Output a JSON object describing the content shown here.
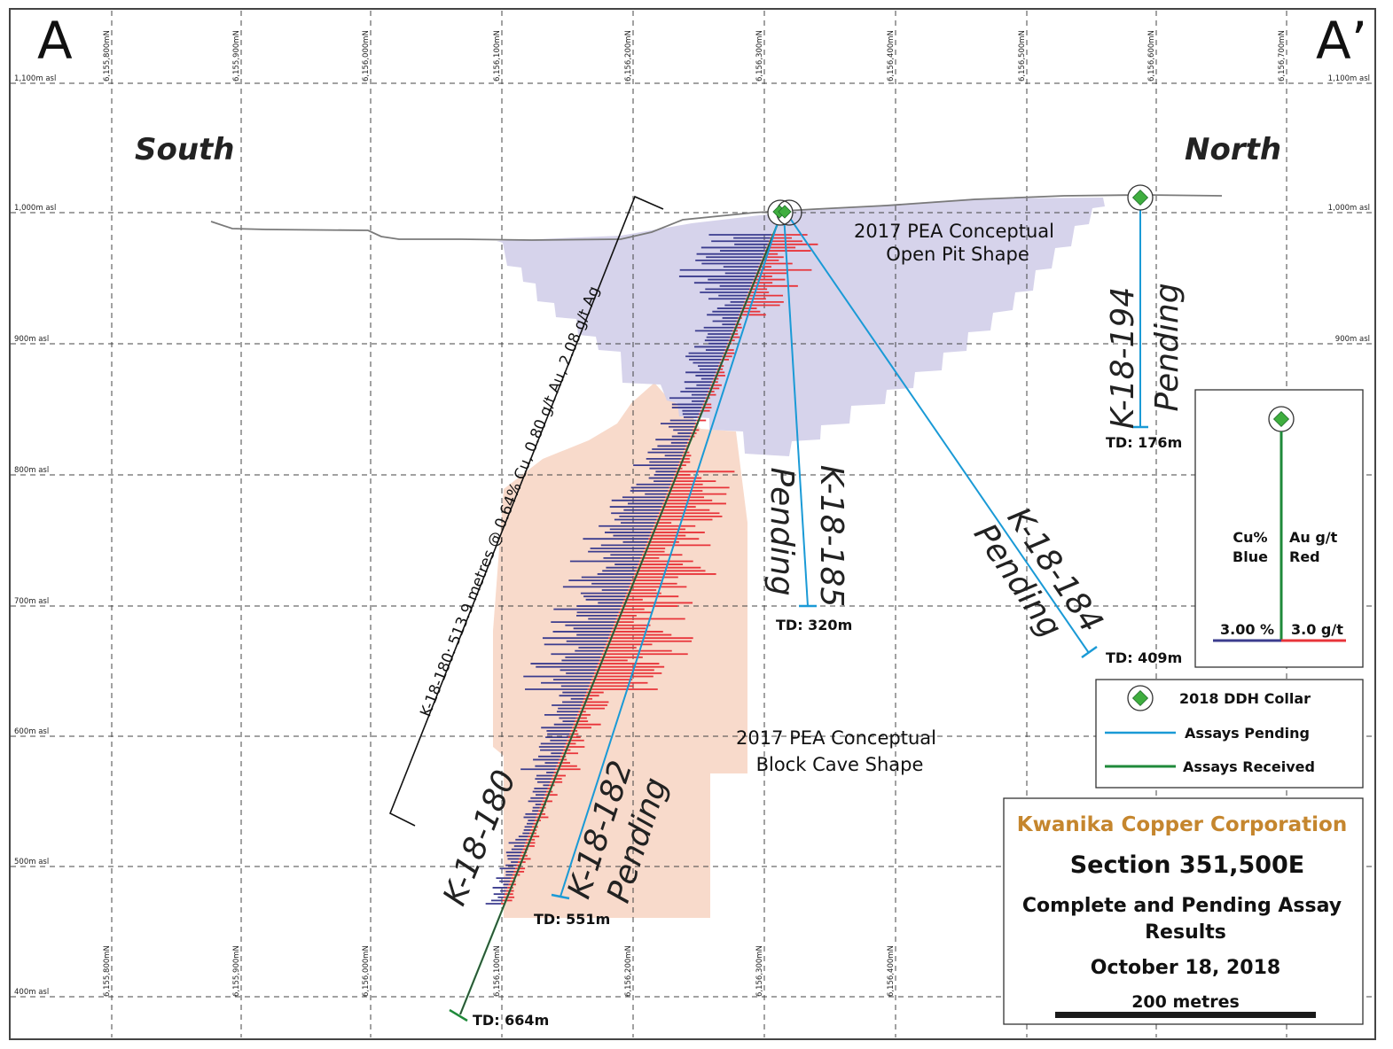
{
  "section": {
    "corner_left": "A",
    "corner_right": "A’",
    "south_label": "South",
    "north_label": "North",
    "northing_labels": [
      "6,155,800mN",
      "6,155,900mN",
      "6,156,000mN",
      "6,156,100mN",
      "6,156,200mN",
      "6,156,300mN",
      "6,156,400mN",
      "6,156,500mN",
      "6,156,600mN",
      "6,156,700mN"
    ],
    "elevation_labels": [
      "1,100m asl",
      "1,000m asl",
      "900m asl",
      "800m asl",
      "700m asl",
      "600m asl",
      "500m asl",
      "400m asl"
    ]
  },
  "shapes": {
    "open_pit": [
      "2017 PEA Conceptual",
      "Open Pit Shape"
    ],
    "block_cave": [
      "2017 PEA Conceptual",
      "Block Cave Shape"
    ]
  },
  "drillholes": [
    {
      "id": "K-18-180",
      "status": "",
      "td": "TD: 664m"
    },
    {
      "id": "K-18-182",
      "status": "Pending",
      "td": "TD: 551m"
    },
    {
      "id": "K-18-185",
      "status": "Pending",
      "td": "TD: 320m"
    },
    {
      "id": "K-18-184",
      "status": "Pending",
      "td": "TD: 409m"
    },
    {
      "id": "K-18-194",
      "status": "Pending",
      "td": "TD: 176m"
    }
  ],
  "intercept": "K-18-180: 513.9 metres @ 0.64% Cu, 0.80 g/t Au, 2.08 g/t Ag",
  "scale_box": {
    "cu_label": [
      "Cu%",
      "Blue"
    ],
    "au_label": [
      "Au g/t",
      "Red"
    ],
    "cu_scale": "3.00 %",
    "au_scale": "3.0 g/t"
  },
  "legend": {
    "collar": "2018 DDH Collar",
    "pending": "Assays Pending",
    "received": "Assays Received"
  },
  "title_box": {
    "company": "Kwanika Copper Corporation",
    "section": "Section 351,500E",
    "subtitle": [
      "Complete and Pending Assay",
      "Results"
    ],
    "date": "October 18, 2018",
    "scale": "200 metres"
  },
  "colors": {
    "cu_blue": "#3b3c8e",
    "au_red": "#e8343a",
    "pending": "#1a9ad6",
    "received": "#1f8a3a",
    "collar": "#3fae3f",
    "pit_fill": "#d4d1ea",
    "cave_fill": "#f8dacb",
    "company": "#c5862e"
  }
}
